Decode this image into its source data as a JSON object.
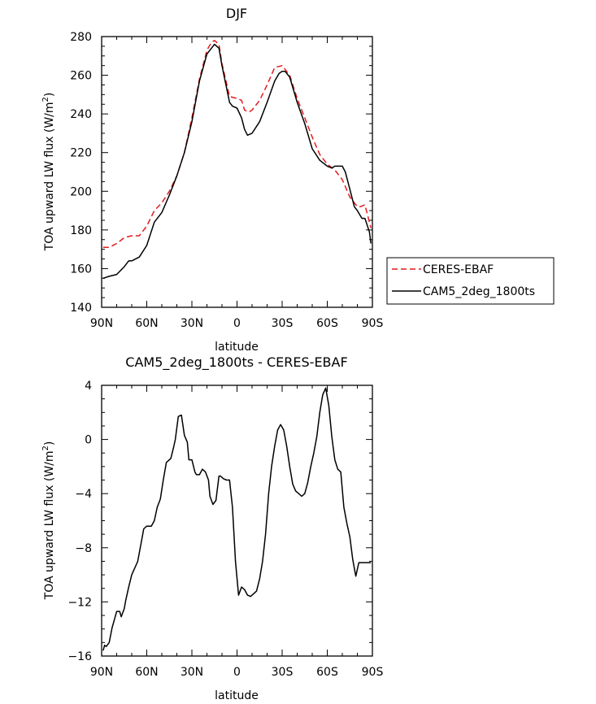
{
  "chart_data": [
    {
      "type": "line",
      "title": "DJF",
      "xlabel": "latitude",
      "ylabel": "TOA upward LW flux (W/m²)",
      "ylabel_text": "TOA upward LW flux (W/m",
      "ylabel_sup": "2",
      "ylabel_close": ")",
      "xlim": [
        90,
        -90
      ],
      "ylim": [
        140,
        280
      ],
      "xticks": [
        90,
        60,
        30,
        0,
        -30,
        -60,
        -90
      ],
      "xtick_labels": [
        "90N",
        "60N",
        "30N",
        "0",
        "30S",
        "60S",
        "90S"
      ],
      "yticks": [
        140,
        160,
        180,
        200,
        220,
        240,
        260,
        280
      ],
      "ytick_labels": [
        "140",
        "160",
        "180",
        "200",
        "220",
        "240",
        "260",
        "280"
      ],
      "legend_position": "right",
      "series": [
        {
          "name": "CERES-EBAF",
          "color": "#e41a1c",
          "dash": "dashed",
          "x": [
            89,
            85,
            80,
            75,
            70,
            65,
            60,
            55,
            50,
            45,
            40,
            35,
            30,
            25,
            20,
            17,
            15,
            12,
            10,
            5,
            0,
            -3,
            -5,
            -8,
            -10,
            -15,
            -20,
            -25,
            -30,
            -35,
            -40,
            -45,
            -50,
            -55,
            -60,
            -65,
            -70,
            -75,
            -80,
            -82,
            -85,
            -89
          ],
          "y": [
            171,
            171,
            173,
            176,
            177,
            177,
            182,
            190,
            194,
            200,
            208,
            220,
            238,
            258,
            273,
            277,
            278,
            276,
            266,
            249,
            248,
            247,
            242,
            241,
            242,
            247,
            255,
            264,
            265,
            260,
            248,
            238,
            228,
            219,
            214,
            211,
            206,
            197,
            192,
            192,
            193,
            181
          ]
        },
        {
          "name": "CAM5_2deg_1800ts",
          "color": "#000000",
          "dash": "solid",
          "x": [
            89,
            85,
            80,
            75,
            72,
            70,
            65,
            60,
            55,
            50,
            45,
            40,
            35,
            30,
            25,
            20,
            17,
            15,
            12,
            10,
            5,
            3,
            0,
            -3,
            -5,
            -7,
            -10,
            -15,
            -20,
            -25,
            -28,
            -30,
            -32,
            -35,
            -40,
            -45,
            -50,
            -55,
            -60,
            -63,
            -65,
            -70,
            -72,
            -75,
            -78,
            -80,
            -83,
            -85,
            -88,
            -89
          ],
          "y": [
            155,
            156,
            157,
            161,
            164,
            164,
            166,
            172,
            184,
            189,
            198,
            208,
            220,
            236,
            257,
            271,
            274,
            276,
            274,
            265,
            246,
            244,
            243,
            238,
            232,
            229,
            230,
            236,
            246,
            257,
            261,
            262,
            262,
            259,
            246,
            235,
            222,
            216,
            213,
            212,
            213,
            213,
            210,
            201,
            192,
            190,
            186,
            186,
            179,
            173
          ]
        }
      ]
    },
    {
      "type": "line",
      "title": "CAM5_2deg_1800ts - CERES-EBAF",
      "xlabel": "latitude",
      "ylabel": "TOA upward LW flux (W/m²)",
      "ylabel_text": "TOA upward LW flux (W/m",
      "ylabel_sup": "2",
      "ylabel_close": ")",
      "xlim": [
        90,
        -90
      ],
      "ylim": [
        -16,
        4
      ],
      "xticks": [
        90,
        60,
        30,
        0,
        -30,
        -60,
        -90
      ],
      "xtick_labels": [
        "90N",
        "60N",
        "30N",
        "0",
        "30S",
        "60S",
        "90S"
      ],
      "yticks": [
        -16,
        -12,
        -8,
        -4,
        0,
        4
      ],
      "ytick_labels": [
        "−16",
        "−12",
        "−8",
        "−4",
        "0",
        "4"
      ],
      "series": [
        {
          "color": "#000000",
          "dash": "solid",
          "x": [
            89,
            88,
            87,
            85,
            83,
            82,
            80,
            78,
            77,
            75,
            74,
            72,
            70,
            68,
            66,
            64,
            62,
            60,
            57,
            55,
            53,
            51,
            49,
            47,
            44,
            42,
            41,
            39,
            37,
            35,
            33,
            32,
            30,
            28,
            27,
            25,
            23,
            21,
            19,
            18,
            16,
            14,
            12,
            11,
            9,
            7,
            5,
            3,
            1,
            -1,
            -3,
            -5,
            -7,
            -9,
            -11,
            -13,
            -15,
            -17,
            -19,
            -21,
            -23,
            -25,
            -27,
            -29,
            -31,
            -33,
            -35,
            -37,
            -39,
            -41,
            -43,
            -45,
            -47,
            -49,
            -51,
            -53,
            -55,
            -57,
            -59,
            -61,
            -63,
            -65,
            -67,
            -69,
            -71,
            -73,
            -75,
            -77,
            -79,
            -81,
            -83,
            -85,
            -87,
            -88,
            -89
          ],
          "y": [
            -15.6,
            -15.2,
            -15.3,
            -15.0,
            -13.9,
            -13.5,
            -12.7,
            -12.7,
            -13.1,
            -12.5,
            -11.9,
            -10.9,
            -10.0,
            -9.5,
            -9.0,
            -7.8,
            -6.6,
            -6.4,
            -6.4,
            -6.0,
            -5.0,
            -4.4,
            -3.0,
            -1.7,
            -1.4,
            -0.5,
            0.0,
            1.7,
            1.8,
            0.3,
            -0.2,
            -1.5,
            -1.5,
            -2.4,
            -2.6,
            -2.6,
            -2.2,
            -2.4,
            -3.0,
            -4.2,
            -4.8,
            -4.5,
            -2.7,
            -2.7,
            -2.9,
            -3.0,
            -3.0,
            -5.0,
            -9.0,
            -11.5,
            -10.9,
            -11.1,
            -11.5,
            -11.6,
            -11.4,
            -11.2,
            -10.3,
            -9.0,
            -7.0,
            -4.0,
            -2.0,
            -0.5,
            0.7,
            1.1,
            0.7,
            -0.5,
            -2.0,
            -3.3,
            -3.8,
            -4.0,
            -4.2,
            -4.0,
            -3.2,
            -2.0,
            -1.0,
            0.2,
            2.0,
            3.3,
            3.8,
            2.5,
            0.2,
            -1.5,
            -2.2,
            -2.4,
            -5.0,
            -6.2,
            -7.2,
            -8.9,
            -10.1,
            -9.1,
            -9.1,
            -9.1,
            -9.1,
            -9.1,
            -9.1
          ]
        }
      ]
    }
  ]
}
